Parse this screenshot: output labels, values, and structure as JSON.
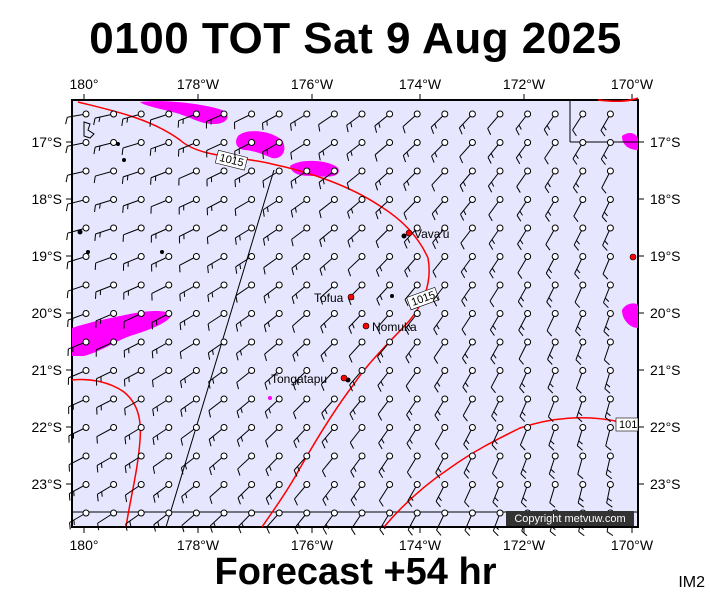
{
  "header": {
    "title": "0100 TOT Sat 9 Aug 2025"
  },
  "footer": {
    "forecast": "Forecast +54 hr",
    "code": "IM2"
  },
  "map": {
    "lon_labels": [
      "180°",
      "178°W",
      "176°W",
      "174°W",
      "172°W",
      "170°W"
    ],
    "lat_labels": [
      "17°S",
      "18°S",
      "19°S",
      "20°S",
      "21°S",
      "22°S",
      "23°S"
    ],
    "places": [
      {
        "name": "Vava'u"
      },
      {
        "name": "Tofua"
      },
      {
        "name": "Nomuka"
      },
      {
        "name": "Tongatapu"
      }
    ],
    "isobar_labels": [
      "1015",
      "1015",
      "101"
    ],
    "copyright": "Copyright metvuw.com",
    "colors": {
      "background": "#e6e6ff",
      "precip": "#ff00ff",
      "isobar": "#ff0000",
      "land": "#000000",
      "place_dot": "#ff0000"
    }
  }
}
